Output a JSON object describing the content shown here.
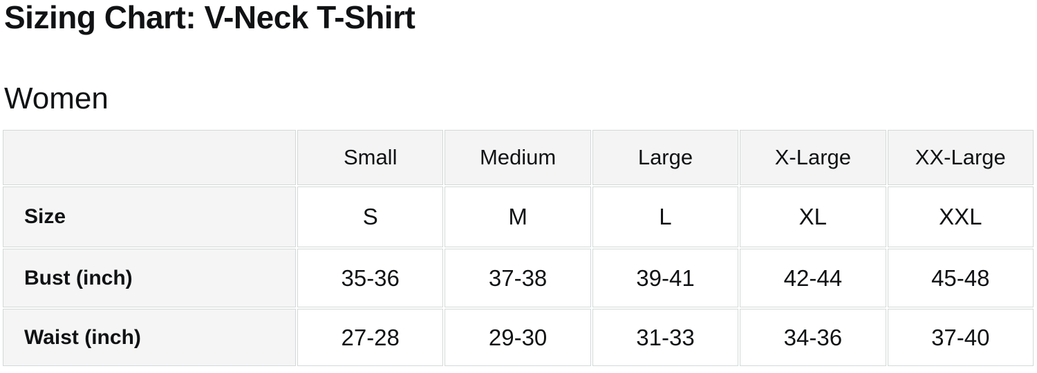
{
  "page": {
    "title": "Sizing Chart: V-Neck T-Shirt",
    "section_heading": "Women"
  },
  "table": {
    "column_headers": [
      "Small",
      "Medium",
      "Large",
      "X-Large",
      "XX-Large"
    ],
    "rows": [
      {
        "label": "Size",
        "values": [
          "S",
          "M",
          "L",
          "XL",
          "XXL"
        ]
      },
      {
        "label": "Bust (inch)",
        "values": [
          "35-36",
          "37-38",
          "39-41",
          "42-44",
          "45-48"
        ]
      },
      {
        "label": "Waist (inch)",
        "values": [
          "27-28",
          "29-30",
          "31-33",
          "34-36",
          "37-40"
        ]
      }
    ]
  },
  "chart_data": {
    "type": "table",
    "title": "Sizing Chart: V-Neck T-Shirt",
    "subtitle": "Women",
    "columns": [
      "",
      "Small",
      "Medium",
      "Large",
      "X-Large",
      "XX-Large"
    ],
    "rows": [
      [
        "Size",
        "S",
        "M",
        "L",
        "XL",
        "XXL"
      ],
      [
        "Bust (inch)",
        "35-36",
        "37-38",
        "39-41",
        "42-44",
        "45-48"
      ],
      [
        "Waist (inch)",
        "27-28",
        "29-30",
        "31-33",
        "34-36",
        "37-40"
      ]
    ]
  },
  "colors": {
    "text": "#101214",
    "border": "#d4d8d8",
    "header_bg": "#f4f4f4",
    "label_col_bg": "#f5f5f5",
    "cell_bg": "#ffffff",
    "page_bg": "#ffffff"
  }
}
